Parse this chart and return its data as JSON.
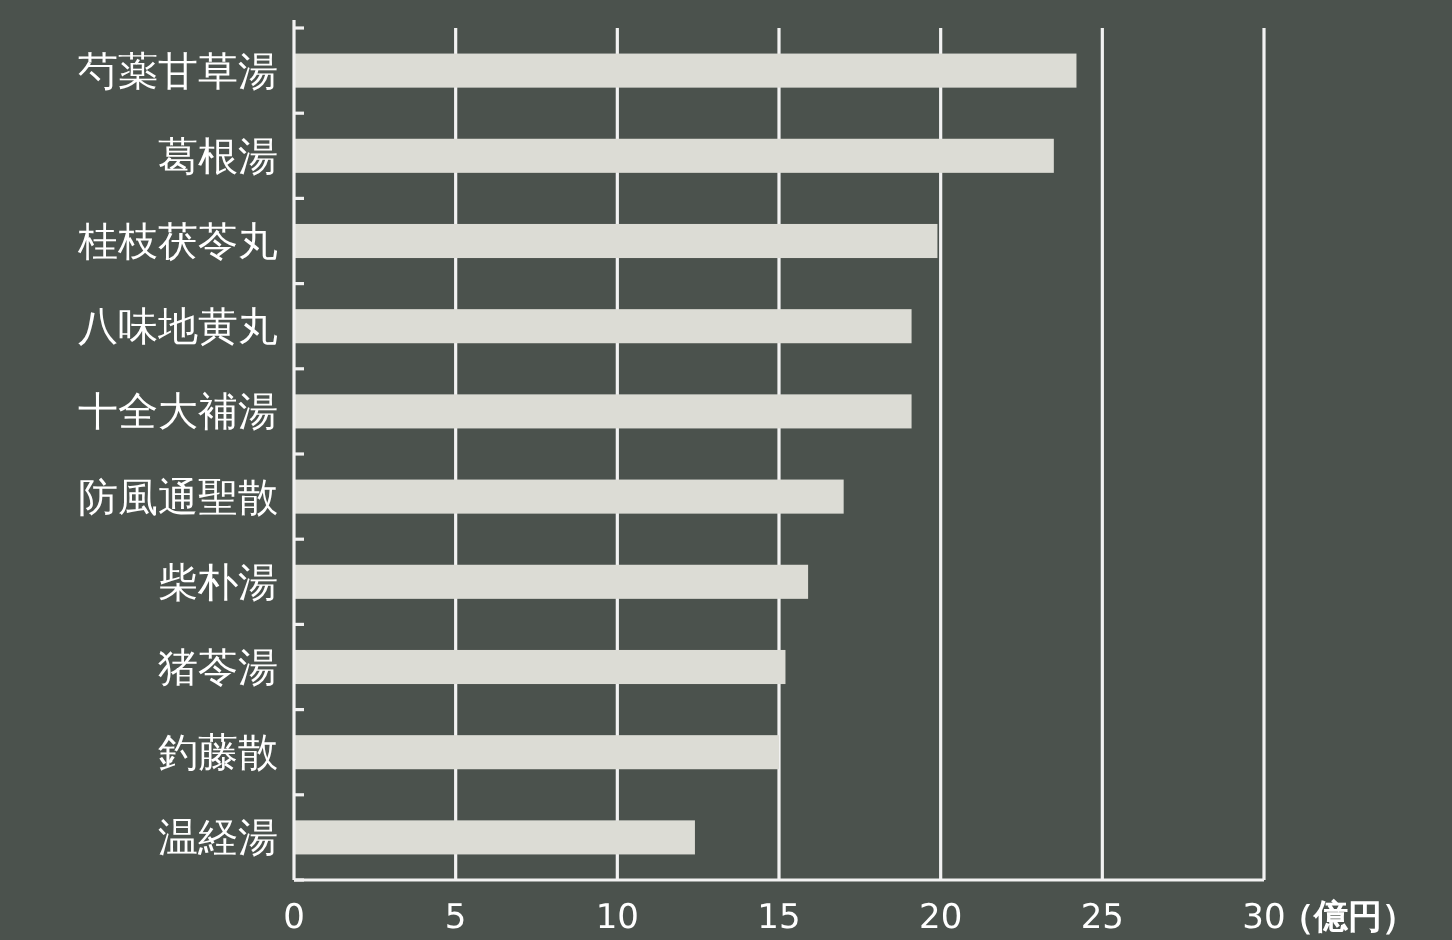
{
  "chart_data": {
    "type": "bar",
    "orientation": "horizontal",
    "categories": [
      "芍薬甘草湯",
      "葛根湯",
      "桂枝茯苓丸",
      "八味地黄丸",
      "十全大補湯",
      "防風通聖散",
      "柴朴湯",
      "猪苓湯",
      "釣藤散",
      "温経湯"
    ],
    "values": [
      24.2,
      23.5,
      19.9,
      19.1,
      19.1,
      17.0,
      15.9,
      15.2,
      15.0,
      12.4
    ],
    "color": "#dcdcd5",
    "xlabel": "（億円）",
    "xlim": [
      0,
      30
    ],
    "xticks": [
      0,
      5,
      10,
      15,
      20,
      25,
      30
    ],
    "grid": "x"
  }
}
